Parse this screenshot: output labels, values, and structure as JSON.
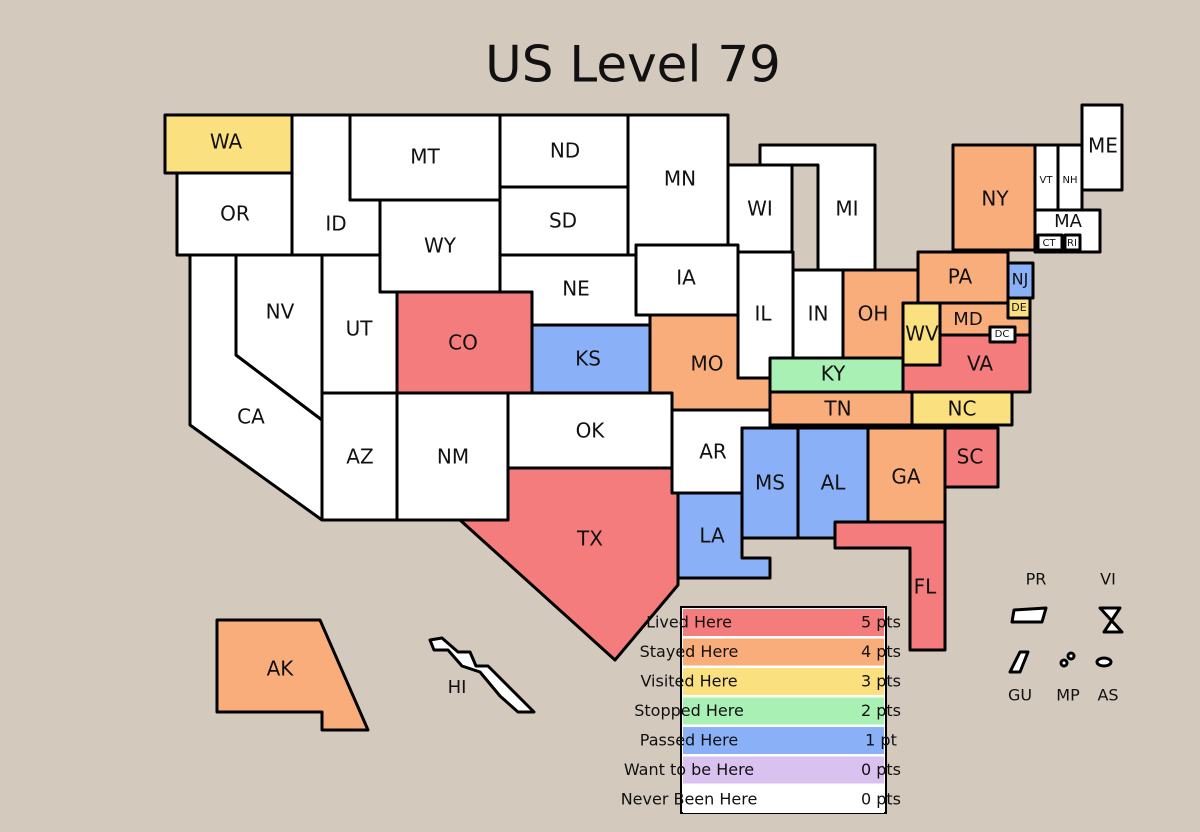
{
  "title": "US Level 79",
  "legend": {
    "items": [
      {
        "label": "Lived Here",
        "points": "5 pts",
        "color": "#f47c7c",
        "states": [
          "CO",
          "TX",
          "VA",
          "SC",
          "FL"
        ]
      },
      {
        "label": "Stayed Here",
        "points": "4 pts",
        "color": "#f9ad7a",
        "states": [
          "AK",
          "MO",
          "OH",
          "PA",
          "NY",
          "MD",
          "TN",
          "GA"
        ]
      },
      {
        "label": "Visited Here",
        "points": "3 pts",
        "color": "#fbe07f",
        "states": [
          "WA",
          "WV",
          "NC",
          "DE"
        ]
      },
      {
        "label": "Stopped Here",
        "points": "2 pts",
        "color": "#a8f0b3",
        "states": [
          "KY"
        ]
      },
      {
        "label": "Passed Here",
        "points": "1 pt",
        "color": "#8ab0f8",
        "states": [
          "KS",
          "NJ",
          "MS",
          "AL",
          "LA"
        ]
      },
      {
        "label": "Want to be Here",
        "points": "0 pts",
        "color": "#d9c2f0",
        "states": []
      },
      {
        "label": "Never Been Here",
        "points": "0 pts",
        "color": "#ffffff",
        "states": [
          "OR",
          "ID",
          "MT",
          "ND",
          "SD",
          "WY",
          "MN",
          "WI",
          "MI",
          "NE",
          "IA",
          "CA",
          "NV",
          "UT",
          "IL",
          "IN",
          "OK",
          "AZ",
          "NM",
          "AR",
          "VT",
          "NH",
          "ME",
          "MA",
          "CT",
          "RI",
          "DC",
          "HI"
        ]
      }
    ]
  },
  "territories": [
    "PR",
    "VI",
    "GU",
    "MP",
    "AS"
  ]
}
